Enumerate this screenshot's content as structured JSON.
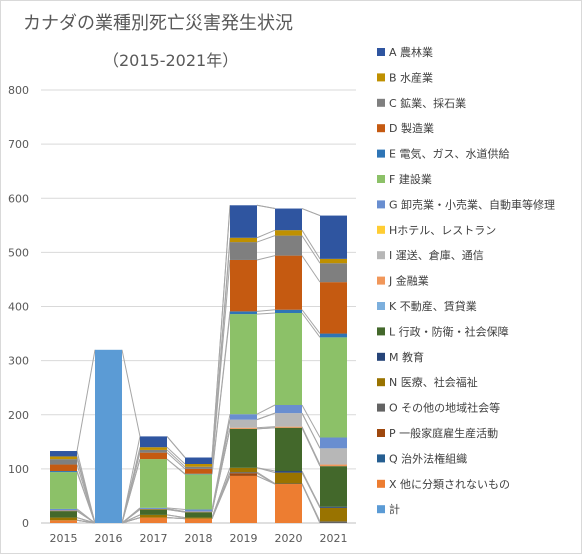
{
  "chart_data": {
    "type": "bar",
    "stacked": true,
    "title": "カナダの業種別死亡災害発生状況",
    "subtitle": "（2015-2021年）",
    "xlabel": "",
    "ylabel": "",
    "ylim": [
      0,
      800
    ],
    "yticks": [
      0,
      100,
      200,
      300,
      400,
      500,
      600,
      700,
      800
    ],
    "grid": true,
    "legend_position": "right",
    "categories": [
      "2015",
      "2016",
      "2017",
      "2018",
      "2019",
      "2020",
      "2021"
    ],
    "series": [
      {
        "name": "X 他に分類されないもの",
        "color": "#ED7D31",
        "values": [
          5,
          0,
          10,
          8,
          87,
          72,
          0
        ]
      },
      {
        "name": "Q 治外法権組織",
        "color": "#255E91",
        "values": [
          0,
          0,
          0,
          0,
          0,
          0,
          0
        ]
      },
      {
        "name": "P 一般家庭雇生産活動",
        "color": "#9E480E",
        "values": [
          0,
          0,
          0,
          0,
          5,
          0,
          0
        ]
      },
      {
        "name": "O その他の地域社会等",
        "color": "#636363",
        "values": [
          0,
          0,
          0,
          0,
          2,
          1,
          3
        ]
      },
      {
        "name": "N 医療、社会福祉",
        "color": "#997300",
        "values": [
          5,
          0,
          5,
          2,
          8,
          20,
          25
        ]
      },
      {
        "name": "M 教育",
        "color": "#264478",
        "values": [
          0,
          0,
          0,
          0,
          0,
          3,
          2
        ]
      },
      {
        "name": "L 行政・防衛・社会保障",
        "color": "#43682B",
        "values": [
          12,
          0,
          10,
          10,
          72,
          80,
          75
        ]
      },
      {
        "name": "K 不動産、賃貸業",
        "color": "#7CAFDD",
        "values": [
          0,
          0,
          0,
          0,
          0,
          0,
          0
        ]
      },
      {
        "name": "J 金融業",
        "color": "#F1975A",
        "values": [
          1,
          0,
          1,
          1,
          2,
          2,
          3
        ]
      },
      {
        "name": "I 運送、倉庫、通信",
        "color": "#B7B7B7",
        "values": [
          0,
          0,
          0,
          0,
          15,
          25,
          30
        ]
      },
      {
        "name": "Hホテル、レストラン",
        "color": "#FFCD33",
        "values": [
          0,
          0,
          0,
          0,
          0,
          0,
          0
        ]
      },
      {
        "name": "G 卸売業・小売業、自動車等修理",
        "color": "#698ED0",
        "values": [
          3,
          0,
          2,
          4,
          10,
          15,
          20
        ]
      },
      {
        "name": "F 建設業",
        "color": "#8CC168",
        "values": [
          68,
          0,
          90,
          65,
          185,
          170,
          185
        ]
      },
      {
        "name": "E 電気、ガス、水道供給",
        "color": "#2E75B6",
        "values": [
          2,
          0,
          0,
          1,
          5,
          6,
          7
        ]
      },
      {
        "name": "D 製造業",
        "color": "#C55A11",
        "values": [
          12,
          0,
          12,
          9,
          95,
          100,
          95
        ]
      },
      {
        "name": "C 鉱業、採石業",
        "color": "#7F7F7F",
        "values": [
          10,
          0,
          5,
          4,
          33,
          37,
          35
        ]
      },
      {
        "name": "B 水産業",
        "color": "#BF9000",
        "values": [
          5,
          0,
          5,
          5,
          8,
          10,
          8
        ]
      },
      {
        "name": "A 農林業",
        "color": "#2F55A0",
        "values": [
          10,
          0,
          20,
          12,
          60,
          40,
          80
        ]
      },
      {
        "name": "計",
        "color": "#5B9BD5",
        "values": [
          0,
          320,
          0,
          0,
          0,
          0,
          0
        ]
      }
    ],
    "legend": [
      "A 農林業",
      "B 水産業",
      "C 鉱業、採石業",
      "D 製造業",
      "E 電気、ガス、水道供給",
      "F 建設業",
      "G 卸売業・小売業、自動車等修理",
      "Hホテル、レストラン",
      "I 運送、倉庫、通信",
      "J 金融業",
      "K 不動産、賃貸業",
      "L 行政・防衛・社会保障",
      "M 教育",
      "N 医療、社会福祉",
      "O その他の地域社会等",
      "P 一般家庭雇生産活動",
      "Q 治外法権組織",
      "X 他に分類されないもの",
      "計"
    ]
  }
}
